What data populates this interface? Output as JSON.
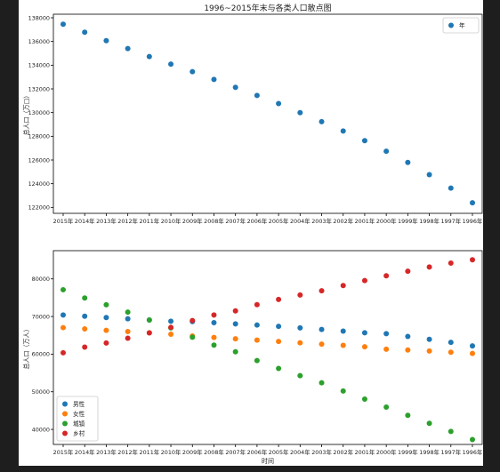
{
  "chart_data": [
    {
      "type": "scatter",
      "title": "1996~2015年末与各类人口散点图",
      "xlabel": "",
      "ylabel": "总人口（万□）",
      "categories": [
        "2015年",
        "2014年",
        "2013年",
        "2012年",
        "2011年",
        "2010年",
        "2009年",
        "2008年",
        "2007年",
        "2006年",
        "2005年",
        "2004年",
        "2003年",
        "2002年",
        "2001年",
        "2000年",
        "1999年",
        "1998年",
        "1997年",
        "1996年"
      ],
      "ylim": [
        121500,
        138300
      ],
      "yticks": [
        122000,
        124000,
        126000,
        128000,
        130000,
        132000,
        134000,
        136000,
        138000
      ],
      "legend": "top-right",
      "grid": false,
      "series": [
        {
          "name": "年",
          "color": "#1f77b4",
          "values": [
            137460,
            136780,
            136070,
            135400,
            134730,
            134090,
            133450,
            132800,
            132130,
            131450,
            130760,
            129990,
            129230,
            128450,
            127630,
            126740,
            125790,
            124760,
            123630,
            122390
          ]
        }
      ]
    },
    {
      "type": "scatter",
      "title": "",
      "xlabel": "时间",
      "ylabel": "总人口（万人）",
      "categories": [
        "2015年",
        "2014年",
        "2013年",
        "2012年",
        "2011年",
        "2010年",
        "2009年",
        "2008年",
        "2007年",
        "2006年",
        "2005年",
        "2004年",
        "2003年",
        "2002年",
        "2001年",
        "2000年",
        "1999年",
        "1998年",
        "1997年",
        "1996年"
      ],
      "ylim": [
        36000,
        87500
      ],
      "yticks": [
        40000,
        50000,
        60000,
        70000,
        80000
      ],
      "legend": "bottom-left",
      "grid": false,
      "series": [
        {
          "name": "男性",
          "color": "#1f77b4",
          "values": [
            70410,
            70080,
            69730,
            69400,
            69070,
            68750,
            68650,
            68360,
            68050,
            67730,
            67380,
            66980,
            66560,
            66120,
            65670,
            65440,
            64690,
            63940,
            63130,
            62200
          ]
        },
        {
          "name": "女性",
          "color": "#ff7f0e",
          "values": [
            67050,
            66700,
            66340,
            66000,
            65670,
            65290,
            64810,
            64450,
            64080,
            63720,
            63380,
            63010,
            62670,
            62340,
            61960,
            61300,
            61110,
            60830,
            60500,
            60190
          ]
        },
        {
          "name": "城镇",
          "color": "#2ca02c",
          "values": [
            77120,
            74920,
            73110,
            71180,
            69080,
            66980,
            64510,
            62400,
            60630,
            58290,
            56210,
            54280,
            52380,
            50210,
            48060,
            45910,
            43750,
            41610,
            39450,
            37300
          ]
        },
        {
          "name": "乡村",
          "color": "#d62728",
          "values": [
            60350,
            61870,
            62960,
            64220,
            65660,
            67110,
            68940,
            70400,
            71500,
            73160,
            74540,
            75710,
            76850,
            78240,
            79560,
            80840,
            82040,
            83150,
            84180,
            85090
          ]
        }
      ]
    }
  ]
}
